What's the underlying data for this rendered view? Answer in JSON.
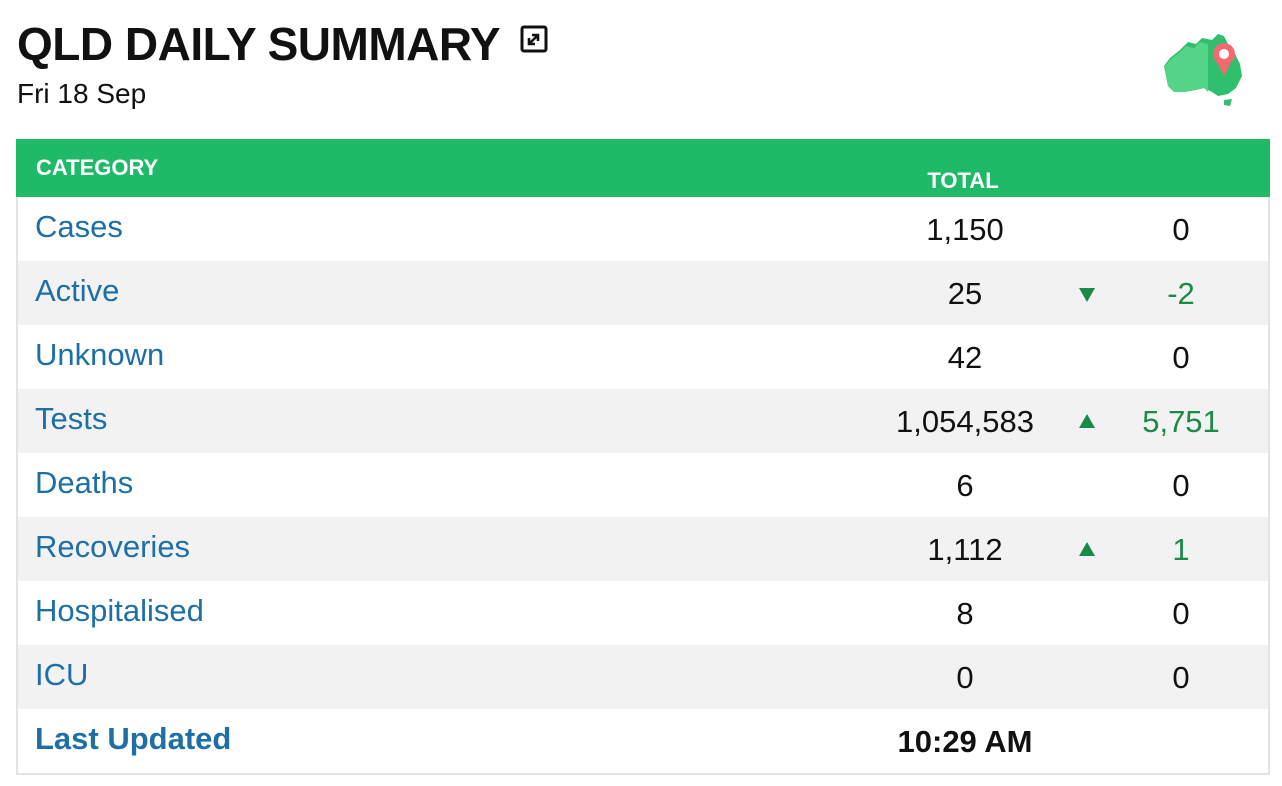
{
  "header": {
    "title": "QLD DAILY SUMMARY",
    "date": "Fri 18 Sep"
  },
  "table": {
    "col_category": "CATEGORY",
    "col_total": "TOTAL",
    "rows": [
      {
        "label": "Cases",
        "total": "1,150",
        "trend": "none",
        "delta": "0"
      },
      {
        "label": "Active",
        "total": "25",
        "trend": "down",
        "delta": "-2"
      },
      {
        "label": "Unknown",
        "total": "42",
        "trend": "none",
        "delta": "0"
      },
      {
        "label": "Tests",
        "total": "1,054,583",
        "trend": "up",
        "delta": "5,751"
      },
      {
        "label": "Deaths",
        "total": "6",
        "trend": "none",
        "delta": "0"
      },
      {
        "label": "Recoveries",
        "total": "1,112",
        "trend": "up",
        "delta": "1"
      },
      {
        "label": "Hospitalised",
        "total": "8",
        "trend": "none",
        "delta": "0"
      },
      {
        "label": "ICU",
        "total": "0",
        "trend": "none",
        "delta": "0"
      }
    ],
    "last_updated_label": "Last Updated",
    "last_updated_value": "10:29 AM"
  },
  "colors": {
    "header_green": "#1fba68",
    "link_blue": "#1d6fa5",
    "change_green": "#1a8a47",
    "stripe": "#f2f2f2"
  },
  "icons": {
    "expand": "expand-icon",
    "map": "australia-map-pin-icon",
    "trend_none": "dot-icon",
    "trend_up": "triangle-up-icon",
    "trend_down": "triangle-down-icon"
  }
}
